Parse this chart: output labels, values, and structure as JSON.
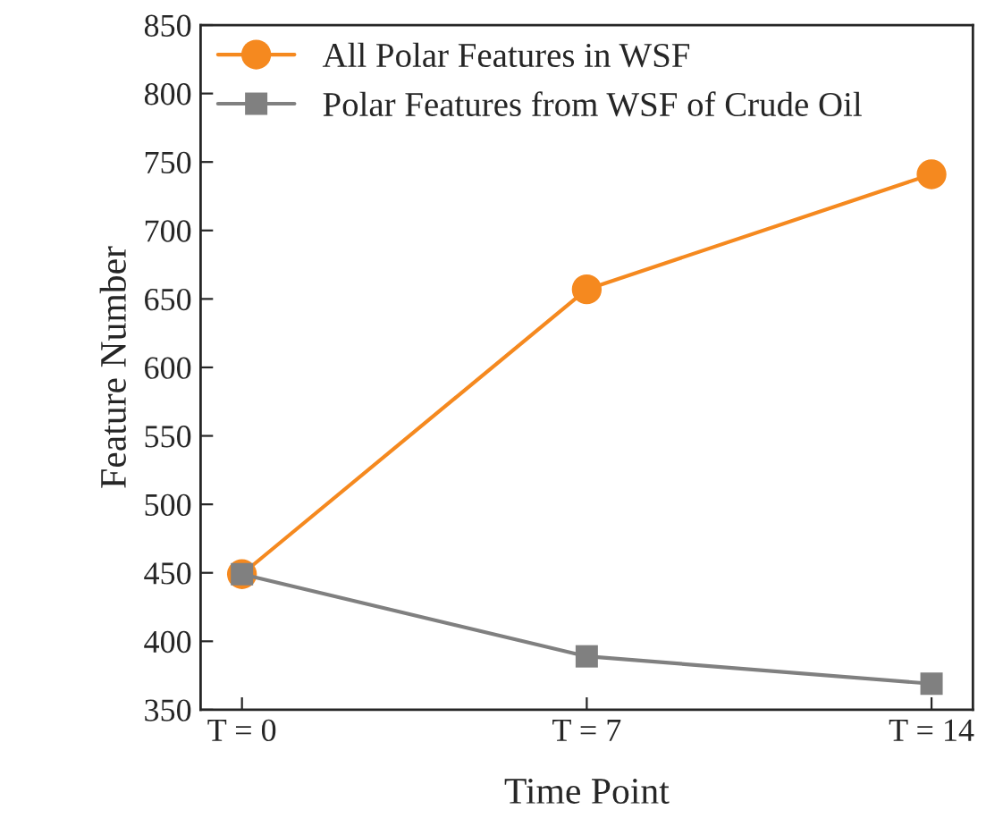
{
  "chart_data": {
    "type": "line",
    "xlabel": "Time Point",
    "ylabel": "Feature Number",
    "categories": [
      "T = 0",
      "T = 7",
      "T = 14"
    ],
    "series": [
      {
        "name": "All Polar Features in WSF",
        "color": "#f5891f",
        "values": [
          449,
          657,
          741
        ],
        "marker": "circle"
      },
      {
        "name": "Polar Features from WSF of Crude Oil",
        "color": "#808080",
        "values": [
          449,
          389,
          369
        ],
        "marker": "square"
      }
    ],
    "ylim": [
      350,
      850
    ],
    "yticks": [
      350,
      400,
      450,
      500,
      550,
      600,
      650,
      700,
      750,
      800,
      850
    ],
    "grid": false,
    "legend": "top left",
    "line_style": "solid"
  }
}
